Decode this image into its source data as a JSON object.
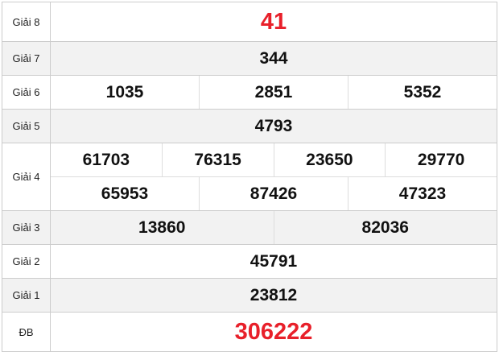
{
  "prizes": [
    {
      "label": "Giải 8",
      "rows": [
        [
          "41"
        ]
      ],
      "highlight": true
    },
    {
      "label": "Giải 7",
      "rows": [
        [
          "344"
        ]
      ]
    },
    {
      "label": "Giải 6",
      "rows": [
        [
          "1035",
          "2851",
          "5352"
        ]
      ]
    },
    {
      "label": "Giải 5",
      "rows": [
        [
          "4793"
        ]
      ]
    },
    {
      "label": "Giải 4",
      "rows": [
        [
          "61703",
          "76315",
          "23650",
          "29770"
        ],
        [
          "65953",
          "87426",
          "47323"
        ]
      ]
    },
    {
      "label": "Giải 3",
      "rows": [
        [
          "13860",
          "82036"
        ]
      ]
    },
    {
      "label": "Giải 2",
      "rows": [
        [
          "45791"
        ]
      ]
    },
    {
      "label": "Giải 1",
      "rows": [
        [
          "23812"
        ]
      ]
    },
    {
      "label": "ĐB",
      "rows": [
        [
          "306222"
        ]
      ],
      "highlight": true
    }
  ],
  "colors": {
    "highlight": "#e8202a",
    "alt_row": "#f2f2f2",
    "border": "#cccccc"
  }
}
